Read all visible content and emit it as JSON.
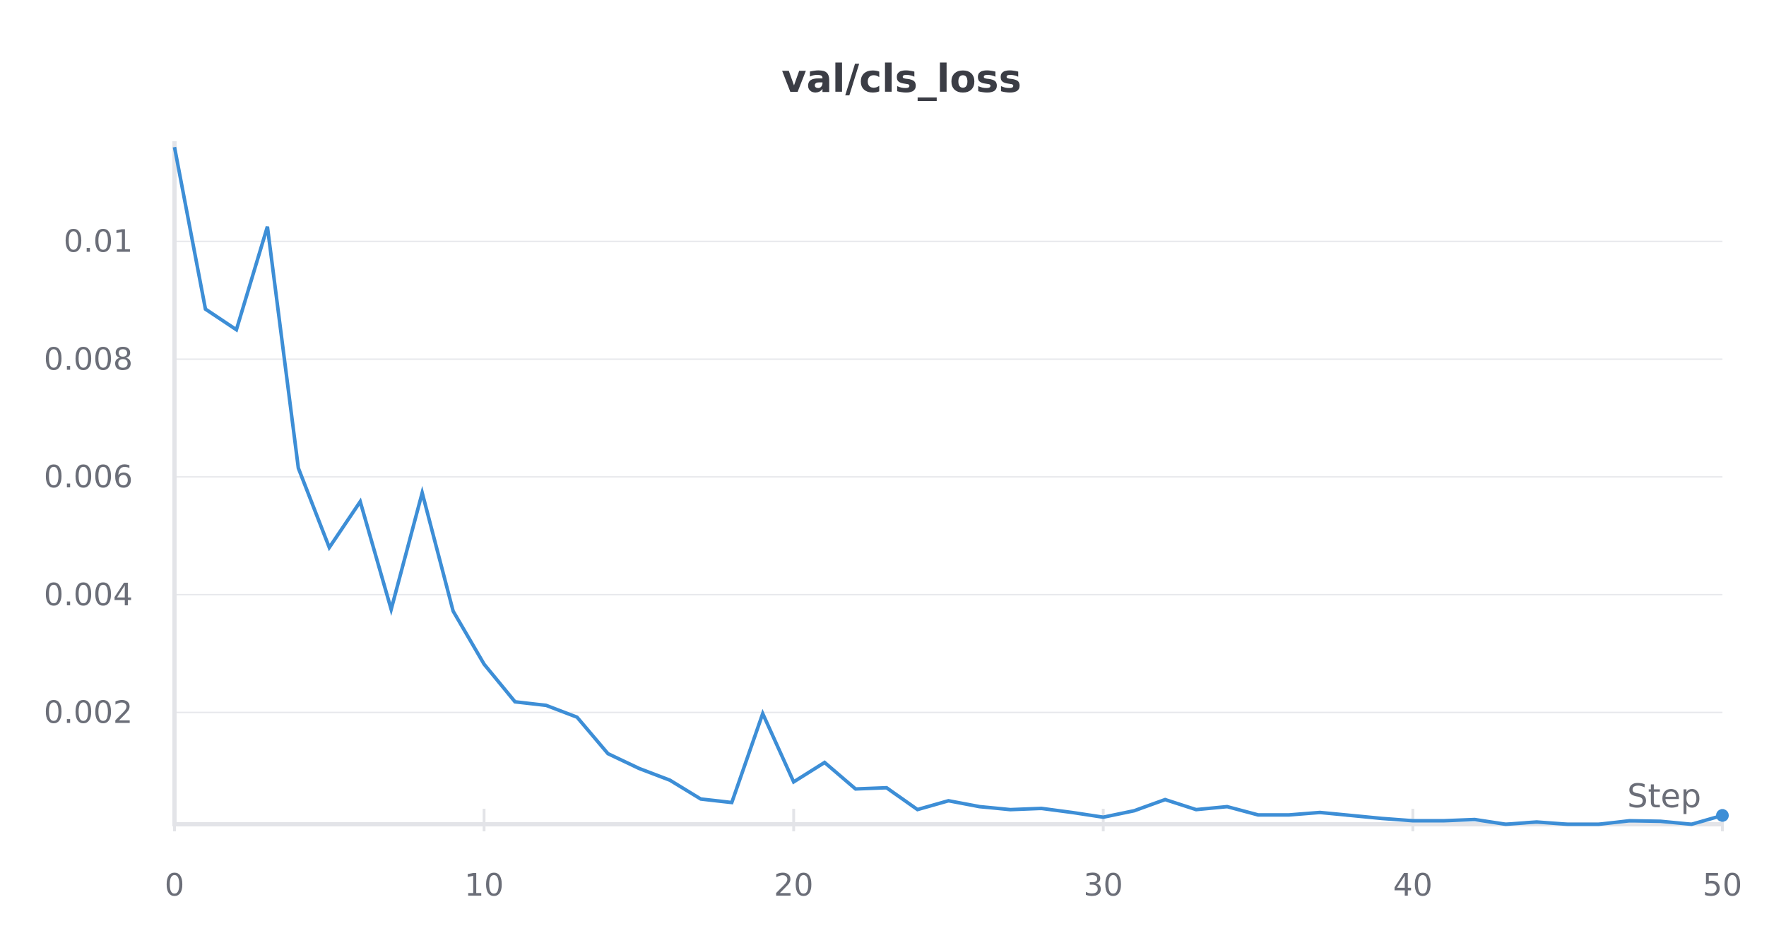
{
  "chart_data": {
    "type": "line",
    "title": "val/cls_loss",
    "xlabel": "Step",
    "ylabel": "",
    "xlim": [
      0,
      50
    ],
    "ylim": [
      0.0001,
      0.0117
    ],
    "x_ticks": [
      0,
      10,
      20,
      30,
      40,
      50
    ],
    "x_tick_labels": [
      "0",
      "10",
      "20",
      "30",
      "40",
      "50"
    ],
    "y_ticks": [
      0.002,
      0.004,
      0.006,
      0.008,
      0.01
    ],
    "y_tick_labels": [
      "0.002",
      "0.004",
      "0.006",
      "0.008",
      "0.01"
    ],
    "grid": true,
    "legend": "none",
    "colors": {
      "series": "#3d8ed6",
      "grid": "#e7e8ec",
      "axis": "#e3e4e8",
      "text": "#6b6e78",
      "title": "#3b3d45"
    },
    "series": [
      {
        "x": [
          0,
          1,
          2,
          3,
          4,
          5,
          6,
          7,
          8,
          9,
          10,
          11,
          12,
          13,
          14,
          15,
          16,
          17,
          18,
          19,
          20,
          21,
          22,
          23,
          24,
          25,
          26,
          27,
          28,
          29,
          30,
          31,
          32,
          33,
          34,
          35,
          36,
          37,
          38,
          39,
          40,
          41,
          42,
          43,
          44,
          45,
          46,
          47,
          48,
          49,
          50
        ],
        "values": [
          0.0116,
          0.00885,
          0.0085,
          0.01025,
          0.00615,
          0.0048,
          0.00558,
          0.00375,
          0.00573,
          0.00372,
          0.00282,
          0.00218,
          0.00212,
          0.00192,
          0.0013,
          0.00105,
          0.00085,
          0.00053,
          0.00047,
          0.00198,
          0.00082,
          0.00115,
          0.0007,
          0.00072,
          0.00035,
          0.0005,
          0.0004,
          0.00035,
          0.00037,
          0.0003,
          0.00022,
          0.00033,
          0.00052,
          0.00035,
          0.0004,
          0.00026,
          0.00026,
          0.0003,
          0.00025,
          0.0002,
          0.00016,
          0.00016,
          0.00018,
          0.0001,
          0.00014,
          0.0001,
          0.0001,
          0.00016,
          0.00015,
          0.0001,
          0.00025
        ]
      }
    ]
  }
}
